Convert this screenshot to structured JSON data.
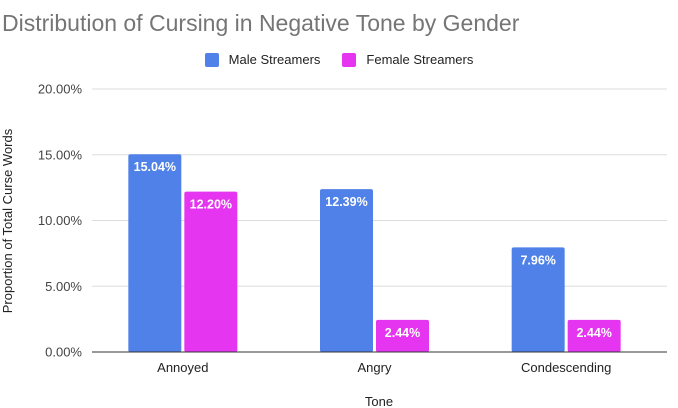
{
  "chart_data": {
    "type": "bar",
    "title": "Distribution of Cursing in Negative Tone by Gender",
    "xlabel": "Tone",
    "ylabel": "Proportion of Total Curse Words",
    "categories": [
      "Annoyed",
      "Angry",
      "Condescending"
    ],
    "series": [
      {
        "name": "Male Streamers",
        "color": "#4f81e8",
        "values": [
          15.04,
          12.39,
          7.96
        ],
        "labels": [
          "15.04%",
          "12.39%",
          "7.96%"
        ]
      },
      {
        "name": "Female Streamers",
        "color": "#e535f0",
        "values": [
          12.2,
          2.44,
          2.44
        ],
        "labels": [
          "12.20%",
          "2.44%",
          "2.44%"
        ]
      }
    ],
    "ylim": [
      0,
      20
    ],
    "yticks": [
      0,
      5,
      10,
      15,
      20
    ],
    "ytick_labels": [
      "0.00%",
      "5.00%",
      "10.00%",
      "15.00%",
      "20.00%"
    ],
    "grid": true,
    "legend_position": "top-center"
  }
}
